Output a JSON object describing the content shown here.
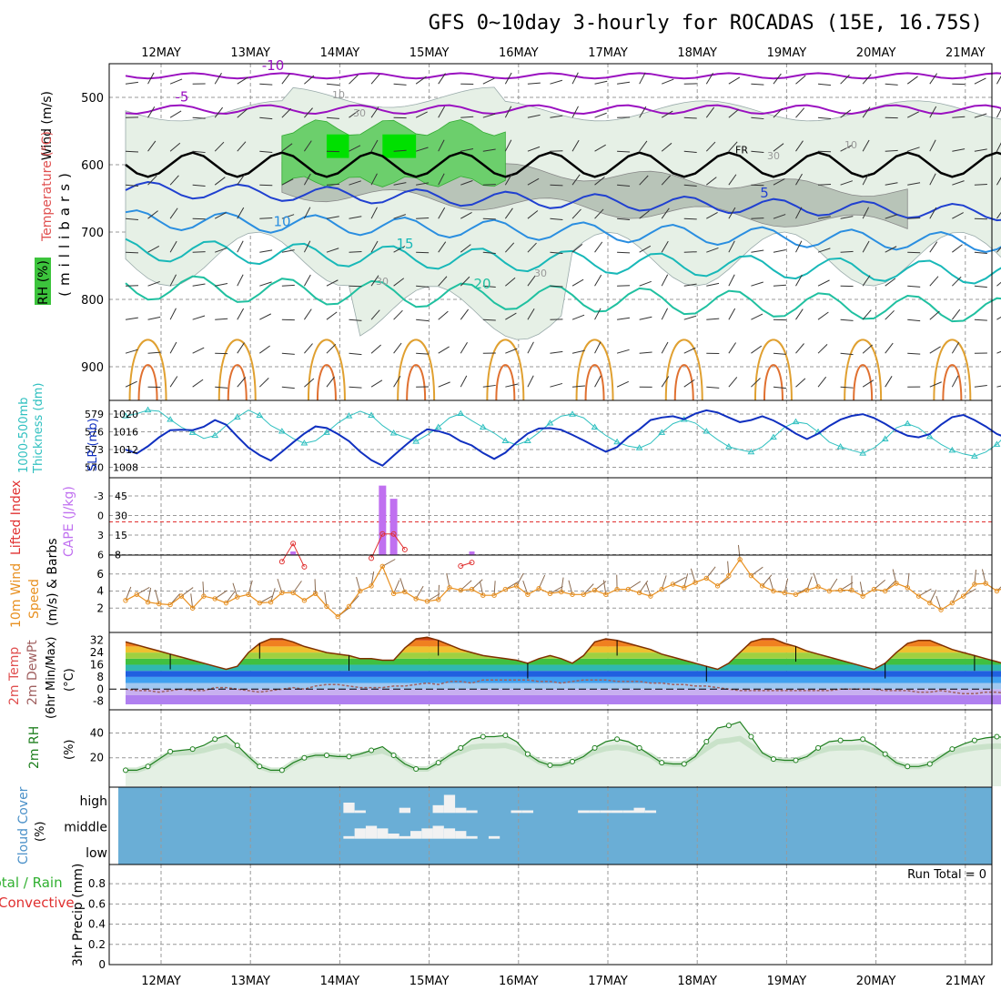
{
  "title": "GFS 0~10day 3-hourly for ROCADAS (15E, 16.75S)",
  "dates": [
    "12MAY",
    "13MAY",
    "14MAY",
    "15MAY",
    "16MAY",
    "17MAY",
    "18MAY",
    "19MAY",
    "20MAY",
    "21MAY"
  ],
  "chart_data": [
    {
      "type": "line",
      "panel": "upper-air",
      "ylabels": [
        "Wind (m/s)",
        "Temperature (°C)",
        "(millibars)",
        "RH (%)"
      ],
      "pressure_ticks": [
        "500",
        "600",
        "700",
        "800",
        "900"
      ],
      "ylim": [
        950,
        450
      ],
      "temperature_contours": [
        {
          "label": "-10",
          "color": "#9a10c0",
          "pressure_approx": 468
        },
        {
          "label": "-5",
          "color": "#9a10c0",
          "pressure_approx": 518
        },
        {
          "label": "FR",
          "color": "#000000",
          "pressure_approx": 600
        },
        {
          "label": "5",
          "color": "#2040d0",
          "pressure_approx": 660
        },
        {
          "label": "10",
          "color": "#2a8ee0",
          "pressure_approx": 705
        },
        {
          "label": "15",
          "color": "#18b8b8",
          "pressure_approx": 750
        },
        {
          "label": "20",
          "color": "#20c0a0",
          "pressure_approx": 805
        }
      ],
      "rh_contour_labels": [
        "10",
        "30",
        "30",
        "30",
        "30",
        "10"
      ]
    },
    {
      "type": "line",
      "panel": "thickness-slp",
      "ylabels": [
        "1000-500mb",
        "Thickness (dm)",
        "SLP (mb)"
      ],
      "left_ticks": [
        "579",
        "576",
        "573",
        "570"
      ],
      "right_ticks": [
        "1020",
        "1016",
        "1012",
        "1008"
      ],
      "series": [
        {
          "name": "Thickness (dm)",
          "color": "#30c0c0",
          "values": [
            578.4,
            578.8,
            579.4,
            579.2,
            577.8,
            576.5,
            575.6,
            574.6,
            575.1,
            576.8,
            578.2,
            579.4,
            578.5,
            576.8,
            575.8,
            574.6,
            573.8,
            574.2,
            575.6,
            577.2,
            578.4,
            579.2,
            578.5,
            576.8,
            575.5,
            574.8,
            574.1,
            575.2,
            576.5,
            578.1,
            578.8,
            577.6,
            576.5,
            575.5,
            574.2,
            573.5,
            574.2,
            575.6,
            577.2,
            578.4,
            578.7,
            578.1,
            576.5,
            575.1,
            574.0,
            573.3,
            573.0,
            573.8,
            575.6,
            577.1,
            577.8,
            577.2,
            575.8,
            574.4,
            573.2,
            572.7,
            572.3,
            573.2,
            574.8,
            576.5,
            577.4,
            577.1,
            575.7,
            574.0,
            573.2,
            572.6,
            572.1,
            573.0,
            574.5,
            576.4,
            577.1,
            576.4,
            574.9,
            573.6,
            572.6,
            572.0,
            571.6,
            572.3,
            573.6,
            575.5,
            576.9,
            576.2,
            574.7,
            573.4,
            572.2,
            571.5,
            571.1,
            572.0,
            574.0,
            575.8,
            576.7,
            575.6,
            574.1,
            572.6,
            571.5,
            570.9,
            570.5,
            571.4,
            573.1,
            574.9,
            575.8,
            574.8,
            573.1,
            571.6,
            570.4,
            569.7,
            569.2,
            570.2
          ]
        },
        {
          "name": "SLP (mb)",
          "color": "#1030c0",
          "values": [
            1011.5,
            1010.6,
            1012.3,
            1014.4,
            1016.1,
            1016.2,
            1016.1,
            1016.9,
            1018.5,
            1017.4,
            1014.6,
            1012.0,
            1010.2,
            1008.9,
            1011.0,
            1013.2,
            1015.3,
            1017.0,
            1016.6,
            1015.2,
            1013.5,
            1011.0,
            1009.0,
            1007.7,
            1010.1,
            1012.4,
            1014.6,
            1016.3,
            1015.9,
            1015.1,
            1013.5,
            1012.5,
            1010.7,
            1009.3,
            1010.8,
            1013.2,
            1015.3,
            1016.5,
            1016.6,
            1016.2,
            1015.0,
            1013.7,
            1012.3,
            1011.0,
            1012.1,
            1014.5,
            1016.3,
            1018.5,
            1019.1,
            1019.4,
            1018.7,
            1020.0,
            1020.8,
            1020.3,
            1019.1,
            1018.0,
            1018.5,
            1019.4,
            1018.4,
            1017.0,
            1015.3,
            1014.0,
            1015.3,
            1017.1,
            1018.6,
            1019.5,
            1019.9,
            1019.0,
            1017.6,
            1016.0,
            1014.8,
            1014.4,
            1015.2,
            1017.4,
            1019.2,
            1019.7,
            1018.5,
            1017.0,
            1015.2,
            1014.2,
            1014.6,
            1016.1,
            1017.8,
            1019.5,
            1020.0,
            1018.8,
            1017.2,
            1015.5,
            1014.2,
            1013.5,
            1014.6,
            1016.8,
            1018.6,
            1019.4,
            1018.8,
            1017.3,
            1015.9,
            1014.3,
            1013.8,
            1014.7,
            1016.2,
            1017.9,
            1019.2,
            1019.6,
            1020.3,
            1020.9
          ]
        }
      ]
    },
    {
      "type": "bar",
      "panel": "cape-lifted-index",
      "ylabels": [
        "Lifted Index",
        "CAPE (J/kg)"
      ],
      "li_ticks": [
        "-3",
        "0",
        "3",
        "6"
      ],
      "cape_ticks": [
        "45",
        "30",
        "15",
        "8"
      ],
      "cape_bars": [
        {
          "time_index": 23,
          "value": 58
        },
        {
          "time_index": 24,
          "value": 47
        }
      ],
      "cape_small_bars": [
        {
          "time_index": 15,
          "value": 1
        },
        {
          "time_index": 31,
          "value": 1
        }
      ],
      "lifted_index_series": {
        "name": "Lifted Index",
        "color": "#e03030",
        "values": [
          {
            "t": 14,
            "v": 4.6
          },
          {
            "t": 15,
            "v": 2.5
          },
          {
            "t": 16,
            "v": 5.2
          },
          {
            "t": 22,
            "v": 4.2
          },
          {
            "t": 23,
            "v": 1.4
          },
          {
            "t": 24,
            "v": 1.4
          },
          {
            "t": 25,
            "v": 3.2
          },
          {
            "t": 30,
            "v": 5.1
          },
          {
            "t": 31,
            "v": 4.7
          }
        ]
      }
    },
    {
      "type": "line",
      "panel": "10m-wind",
      "ylabels": [
        "10m Wind",
        "Speed",
        "(m/s) & Barbs"
      ],
      "yticks": [
        "6",
        "4",
        "2"
      ],
      "series": [
        {
          "name": "Speed",
          "color": "#e89020",
          "values": [
            2.9,
            3.6,
            2.7,
            2.5,
            2.4,
            3.4,
            2.0,
            3.4,
            3.1,
            2.6,
            3.3,
            3.6,
            2.6,
            2.7,
            3.8,
            3.8,
            2.9,
            3.7,
            2.2,
            1.0,
            2.2,
            4.0,
            4.6,
            6.9,
            3.7,
            3.9,
            3.1,
            2.8,
            3.0,
            4.4,
            4.1,
            4.2,
            3.5,
            3.5,
            4.2,
            4.6,
            3.6,
            4.3,
            3.7,
            3.9,
            3.6,
            3.6,
            4.1,
            3.6,
            4.2,
            4.2,
            3.8,
            3.4,
            4.2,
            4.8,
            4.4,
            5.0,
            5.5,
            4.6,
            5.8,
            7.7,
            5.8,
            4.6,
            4.0,
            3.8,
            3.6,
            4.1,
            4.5,
            4.0,
            4.1,
            4.1,
            3.4,
            4.2,
            4.0,
            4.9,
            4.4,
            3.4,
            2.6,
            1.8,
            2.6,
            3.4,
            4.8,
            4.9,
            4.0,
            4.6,
            4.7,
            3.3,
            3.3,
            4.4,
            4.6,
            4.9,
            2.3,
            3.0,
            2.4,
            4.7,
            4.3,
            5.4,
            4.4,
            4.4,
            4.0,
            2.9,
            2.6,
            2.8,
            4.0,
            4.2,
            5.0,
            4.3,
            3.6,
            2.7,
            2.5,
            2.6
          ]
        }
      ]
    },
    {
      "type": "area",
      "panel": "2m-temperature",
      "ylabels": [
        "2m Temp",
        "2m DewPt",
        "(6hr Min/Max)",
        "(°C)"
      ],
      "yticks": [
        "32",
        "24",
        "16",
        "8",
        "0",
        "-8"
      ],
      "series": [
        {
          "name": "2m Temp",
          "color": "#803000",
          "values": [
            31,
            29,
            27,
            25,
            23,
            21,
            19,
            17,
            15,
            13,
            15,
            24,
            30,
            33,
            33,
            31,
            28,
            26,
            24,
            23,
            22,
            20,
            20,
            19,
            19,
            27,
            33,
            34,
            32,
            29,
            26,
            24,
            22,
            21,
            20,
            19,
            17,
            20,
            22,
            20,
            17,
            22,
            31,
            33,
            32,
            30,
            28,
            26,
            23,
            21,
            19,
            17,
            15,
            13,
            17,
            24,
            31,
            33,
            33,
            30,
            28,
            25,
            23,
            21,
            19,
            17,
            15,
            13,
            17,
            24,
            30,
            32,
            32,
            29,
            26,
            24,
            22,
            20,
            18,
            16,
            14,
            13,
            17,
            23,
            30,
            32,
            32,
            29,
            27,
            24,
            22,
            20,
            18,
            16,
            14,
            13,
            17,
            24,
            31,
            32,
            32,
            28,
            25,
            22,
            20,
            18,
            15,
            13
          ]
        },
        {
          "name": "2m DewPt",
          "color": "#a06060",
          "values": [
            0,
            -1,
            -1,
            -2,
            -1,
            0,
            -1,
            -1,
            1,
            1,
            0,
            -1,
            -2,
            -1,
            0,
            1,
            0,
            2,
            3,
            3,
            2,
            1,
            1,
            1,
            2,
            2,
            3,
            4,
            3,
            5,
            5,
            4,
            6,
            6,
            6,
            6,
            6,
            5,
            5,
            4,
            5,
            6,
            6,
            6,
            5,
            5,
            5,
            4,
            4,
            3,
            3,
            2,
            2,
            1,
            0,
            -1,
            -1,
            -1,
            -1,
            -1,
            -1,
            -1,
            -1,
            -1,
            0,
            0,
            0,
            0,
            -1,
            -1,
            -1,
            -2,
            -2,
            -1,
            -2,
            -3,
            -3,
            -2,
            -2,
            -3,
            -4,
            -4,
            -3,
            -4,
            -4,
            -3,
            -4,
            -4,
            -4,
            -3,
            -3,
            -3,
            -3,
            -3,
            -3,
            -4,
            -4,
            -4,
            -3,
            -3,
            -3,
            -3,
            -3,
            -3,
            -3,
            -3,
            -2,
            -2
          ]
        }
      ]
    },
    {
      "type": "area",
      "panel": "2m-rh",
      "ylabels": [
        "2m RH",
        "(%)"
      ],
      "yticks": [
        "40",
        "20"
      ],
      "series": [
        {
          "name": "2m RH",
          "color": "#208020",
          "values": [
            10,
            10,
            13,
            19,
            25,
            26,
            27,
            30,
            35,
            38,
            30,
            21,
            13,
            10,
            10,
            16,
            20,
            22,
            22,
            21,
            21,
            23,
            26,
            29,
            22,
            15,
            11,
            11,
            16,
            22,
            28,
            35,
            37,
            37,
            38,
            33,
            23,
            17,
            14,
            14,
            17,
            21,
            28,
            33,
            35,
            33,
            28,
            22,
            16,
            15,
            15,
            21,
            33,
            44,
            46,
            49,
            37,
            24,
            19,
            18,
            18,
            21,
            28,
            33,
            34,
            34,
            35,
            30,
            23,
            16,
            13,
            13,
            15,
            21,
            27,
            31,
            34,
            36,
            37,
            36,
            30,
            21,
            14,
            11,
            11,
            16,
            20,
            23,
            27,
            30,
            34,
            36,
            36,
            27,
            20,
            15,
            14,
            14,
            17,
            21,
            25,
            28,
            32,
            33,
            28,
            19,
            12,
            10,
            10,
            12,
            16,
            21,
            26,
            30,
            33,
            34
          ]
        }
      ]
    },
    {
      "type": "heatmap",
      "panel": "cloud-cover",
      "ylabels": [
        "Cloud Cover",
        "(%)"
      ],
      "levels": [
        "high",
        "middle",
        "low"
      ],
      "high_cover": [
        {
          "t": 20,
          "v": 40
        },
        {
          "t": 21,
          "v": 10
        },
        {
          "t": 25,
          "v": 20
        },
        {
          "t": 28,
          "v": 30
        },
        {
          "t": 29,
          "v": 70
        },
        {
          "t": 30,
          "v": 20
        },
        {
          "t": 31,
          "v": 10
        },
        {
          "t": 35,
          "v": 10
        },
        {
          "t": 36,
          "v": 10
        },
        {
          "t": 41,
          "v": 10
        },
        {
          "t": 42,
          "v": 10
        },
        {
          "t": 43,
          "v": 10
        },
        {
          "t": 44,
          "v": 10
        },
        {
          "t": 45,
          "v": 10
        },
        {
          "t": 46,
          "v": 20
        },
        {
          "t": 47,
          "v": 10
        }
      ],
      "middle_cover": [
        {
          "t": 20,
          "v": 10
        },
        {
          "t": 21,
          "v": 40
        },
        {
          "t": 22,
          "v": 50
        },
        {
          "t": 23,
          "v": 40
        },
        {
          "t": 24,
          "v": 20
        },
        {
          "t": 25,
          "v": 10
        },
        {
          "t": 26,
          "v": 30
        },
        {
          "t": 27,
          "v": 40
        },
        {
          "t": 28,
          "v": 50
        },
        {
          "t": 29,
          "v": 40
        },
        {
          "t": 30,
          "v": 30
        },
        {
          "t": 31,
          "v": 10
        },
        {
          "t": 33,
          "v": 10
        }
      ]
    },
    {
      "type": "bar",
      "panel": "precip",
      "ylabels": [
        "Total / Rain",
        "Convective",
        "3hr Precip (mm)"
      ],
      "yticks": [
        "0.8",
        "0.6",
        "0.4",
        "0.2",
        "0"
      ],
      "annotation": "Run Total = 0",
      "values": []
    }
  ],
  "colors": {
    "moist_green": "#00e000",
    "rh_light": "#e6f0e6",
    "cloud_blue": "#6aaed6",
    "cape_purple": "#c070f0",
    "thickness_cyan": "#30c0c0",
    "slp_blue": "#1030c0",
    "wind_orange": "#e89020",
    "rh2m_green": "#208020"
  }
}
